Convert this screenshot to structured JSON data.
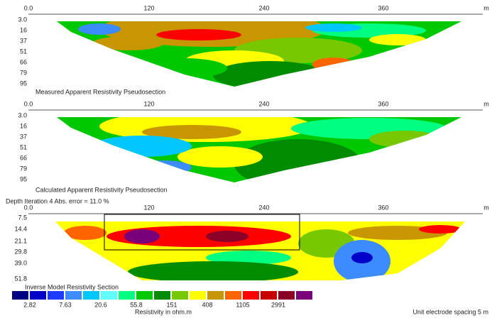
{
  "panels": [
    {
      "caption": "Measured Apparent Resistivity Pseudosection",
      "x_labels": [
        "0.0",
        "120",
        "240",
        "360",
        "m"
      ],
      "depth_labels": [
        "3.0",
        "16",
        "37",
        "51",
        "66",
        "79",
        "95"
      ]
    },
    {
      "caption": "Calculated Apparent Resistivity Pseudosection",
      "x_labels": [
        "0.0",
        "120",
        "240",
        "360",
        "m"
      ],
      "depth_labels": [
        "3.0",
        "16",
        "37",
        "51",
        "66",
        "79",
        "95"
      ]
    },
    {
      "caption": "Inverse Model Resistivity Section",
      "header": "Depth    Iteration 4 Abs. error = 11.0 %",
      "x_labels": [
        "0.0",
        "120",
        "240",
        "360",
        "m"
      ],
      "depth_labels": [
        "7.5",
        "14.4",
        "21.1",
        "29.8",
        "39.0",
        "51.8"
      ]
    }
  ],
  "legend": {
    "colors": [
      "#000080",
      "#0000c8",
      "#1e3cff",
      "#3c8cff",
      "#00c8ff",
      "#64ffff",
      "#00ff80",
      "#00c800",
      "#008c00",
      "#78c800",
      "#ffff00",
      "#c89600",
      "#ff6400",
      "#ff0000",
      "#c80000",
      "#8c0028",
      "#780078"
    ],
    "labels": [
      "2.82",
      "7.63",
      "20.6",
      "55.8",
      "151",
      "408",
      "1105",
      "2991"
    ],
    "title": "Resistivity in ohm.m"
  },
  "footer": "Unit electrode spacing 5 m"
}
